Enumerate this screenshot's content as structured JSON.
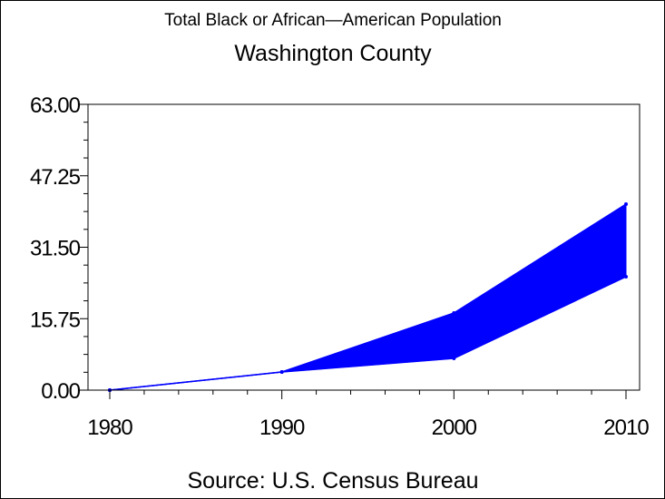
{
  "chart_data": {
    "type": "area",
    "title": "Total Black or African—American Population",
    "subtitle": "Washington County",
    "source": "Source: U.S. Census Bureau",
    "xlabel": "",
    "ylabel": "",
    "x": [
      1980,
      1990,
      2000,
      2010
    ],
    "x_tick_labels": [
      "1980",
      "1990",
      "2000",
      "2010"
    ],
    "y_tick_labels": [
      "0.00",
      "15.75",
      "31.50",
      "47.25",
      "63.00"
    ],
    "y_ticks": [
      0,
      15.75,
      31.5,
      47.25,
      63
    ],
    "xlim": [
      1980,
      2010
    ],
    "ylim": [
      0,
      63
    ],
    "series": [
      {
        "values": [
          0,
          4,
          17,
          41
        ]
      },
      {
        "values": [
          0,
          4,
          7,
          25
        ]
      }
    ],
    "fill_color": "#0000ff",
    "grid": false
  }
}
